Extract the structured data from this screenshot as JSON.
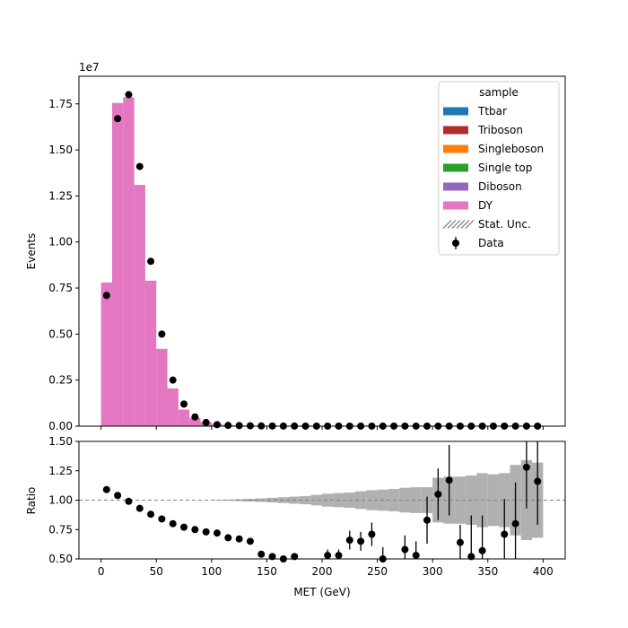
{
  "chart_data": [
    {
      "type": "bar",
      "panel": "main",
      "stacked": true,
      "xlabel": "MET (GeV)",
      "ylabel": "Events",
      "scale_label": "1e7",
      "xlim": [
        -20,
        420
      ],
      "ylim": [
        0,
        1.9
      ],
      "yticks": [
        "0.00",
        "0.25",
        "0.50",
        "0.75",
        "1.00",
        "1.25",
        "1.50",
        "1.75"
      ],
      "x_bin_edges": [
        0,
        10,
        20,
        30,
        40,
        50,
        60,
        70,
        80,
        90,
        100,
        110,
        120,
        130,
        140,
        150,
        160,
        170,
        180,
        190,
        200,
        210,
        220,
        230,
        240,
        250,
        260,
        270,
        280,
        290,
        300,
        310,
        320,
        330,
        340,
        350,
        360,
        370,
        380,
        390,
        400
      ],
      "series": [
        {
          "name": "Ttbar",
          "color": "#1f77b4",
          "values": []
        },
        {
          "name": "Triboson",
          "color": "#b22c2c",
          "values": []
        },
        {
          "name": "Singleboson",
          "color": "#ff7f0e",
          "values": []
        },
        {
          "name": "Single top",
          "color": "#2ca02c",
          "values": []
        },
        {
          "name": "Diboson",
          "color": "#9467bd",
          "values": []
        },
        {
          "name": "DY",
          "color": "#e377c2",
          "values": [
            0.78,
            1.755,
            1.785,
            1.31,
            0.79,
            0.42,
            0.205,
            0.09,
            0.045,
            0.022,
            0.011,
            0.006,
            0.004,
            0.003,
            0.002,
            0.0015,
            0.001,
            0.0008,
            0.0006,
            0.0005,
            0.0004,
            0.0003,
            0.0003,
            0.0002,
            0.0002,
            0.0002,
            0.0001,
            0.0001,
            0.0001,
            0.0001,
            0.0001,
            0.0001,
            0.0001,
            0.0001,
            0.0001,
            0.0001,
            0.0001,
            0.0001,
            0.0001,
            0.0001
          ]
        }
      ],
      "data_points": {
        "name": "Data",
        "x": [
          5,
          15,
          25,
          35,
          45,
          55,
          65,
          75,
          85,
          95,
          105,
          115,
          125,
          135,
          145,
          155,
          165,
          175,
          185,
          195,
          205,
          215,
          225,
          235,
          245,
          255,
          265,
          275,
          285,
          295,
          305,
          315,
          325,
          335,
          345,
          355,
          365,
          375,
          385,
          395
        ],
        "y": [
          0.71,
          1.67,
          1.8,
          1.41,
          0.895,
          0.5,
          0.25,
          0.12,
          0.05,
          0.02,
          0.008,
          0.004,
          0.003,
          0.002,
          0.001,
          0.0008,
          0.0005,
          0.0004,
          0.0003,
          0.0002,
          0.0002,
          0.0002,
          0.0001,
          0.0001,
          0.0001,
          0.0001,
          0.0001,
          0.0001,
          0.0001,
          0.0001,
          0.0001,
          0.0001,
          0.0001,
          0.0001,
          0.0001,
          0.0001,
          0.0001,
          0.0001,
          0.0001,
          0.0001
        ]
      },
      "legend": {
        "title": "sample",
        "placement": "upper right",
        "entries": [
          {
            "label": "Ttbar",
            "kind": "patch",
            "color": "#1f77b4"
          },
          {
            "label": "Triboson",
            "kind": "patch",
            "color": "#b22c2c"
          },
          {
            "label": "Singleboson",
            "kind": "patch",
            "color": "#ff7f0e"
          },
          {
            "label": "Single top",
            "kind": "patch",
            "color": "#2ca02c"
          },
          {
            "label": "Diboson",
            "kind": "patch",
            "color": "#9467bd"
          },
          {
            "label": "DY",
            "kind": "patch",
            "color": "#e377c2"
          },
          {
            "label": "Stat. Unc.",
            "kind": "hatch",
            "color": "#888888"
          },
          {
            "label": "Data",
            "kind": "errorbar",
            "color": "#000000"
          }
        ]
      }
    },
    {
      "type": "scatter",
      "panel": "ratio",
      "xlabel": "MET (GeV)",
      "ylabel": "Ratio",
      "xlim": [
        -20,
        420
      ],
      "ylim": [
        0.5,
        1.5
      ],
      "xticks": [
        "0",
        "50",
        "100",
        "150",
        "200",
        "250",
        "300",
        "350",
        "400"
      ],
      "yticks": [
        "0.50",
        "0.75",
        "1.00",
        "1.25",
        "1.50"
      ],
      "reference_line": 1.0,
      "unc_band": {
        "color": "#b0b0b0",
        "x_bin_edges": [
          0,
          10,
          20,
          30,
          40,
          50,
          60,
          70,
          80,
          90,
          100,
          110,
          120,
          130,
          140,
          150,
          160,
          170,
          180,
          190,
          200,
          210,
          220,
          230,
          240,
          250,
          260,
          270,
          280,
          290,
          300,
          310,
          320,
          330,
          340,
          350,
          360,
          370,
          380,
          390,
          400
        ],
        "half_width": [
          0,
          0,
          0,
          0,
          0,
          0,
          0,
          0,
          0,
          0,
          0.003,
          0.005,
          0.008,
          0.012,
          0.015,
          0.02,
          0.025,
          0.03,
          0.035,
          0.045,
          0.055,
          0.06,
          0.065,
          0.075,
          0.085,
          0.09,
          0.095,
          0.105,
          0.11,
          0.11,
          0.19,
          0.2,
          0.2,
          0.21,
          0.23,
          0.22,
          0.23,
          0.3,
          0.34,
          0.32
        ]
      },
      "x": [
        5,
        15,
        25,
        35,
        45,
        55,
        65,
        75,
        85,
        95,
        105,
        115,
        125,
        135,
        145,
        155,
        165,
        175,
        205,
        215,
        225,
        235,
        245,
        255,
        275,
        285,
        295,
        305,
        315,
        325,
        335,
        345,
        365,
        375,
        385,
        395
      ],
      "y": [
        1.09,
        1.04,
        0.99,
        0.93,
        0.88,
        0.84,
        0.8,
        0.77,
        0.75,
        0.73,
        0.72,
        0.68,
        0.67,
        0.65,
        0.54,
        0.52,
        0.5,
        0.52,
        0.53,
        0.53,
        0.66,
        0.65,
        0.71,
        0.5,
        0.58,
        0.53,
        0.83,
        1.05,
        1.17,
        0.64,
        0.52,
        0.57,
        0.71,
        0.8,
        1.28,
        1.16
      ],
      "yerr": [
        0,
        0,
        0,
        0,
        0,
        0,
        0,
        0,
        0,
        0,
        0,
        0,
        0,
        0,
        0,
        0,
        0,
        0,
        0.05,
        0.05,
        0.08,
        0.08,
        0.1,
        0.1,
        0.12,
        0.12,
        0.2,
        0.22,
        0.3,
        0.15,
        0.35,
        0.3,
        0.3,
        0.35,
        0.35,
        0.37
      ]
    }
  ]
}
